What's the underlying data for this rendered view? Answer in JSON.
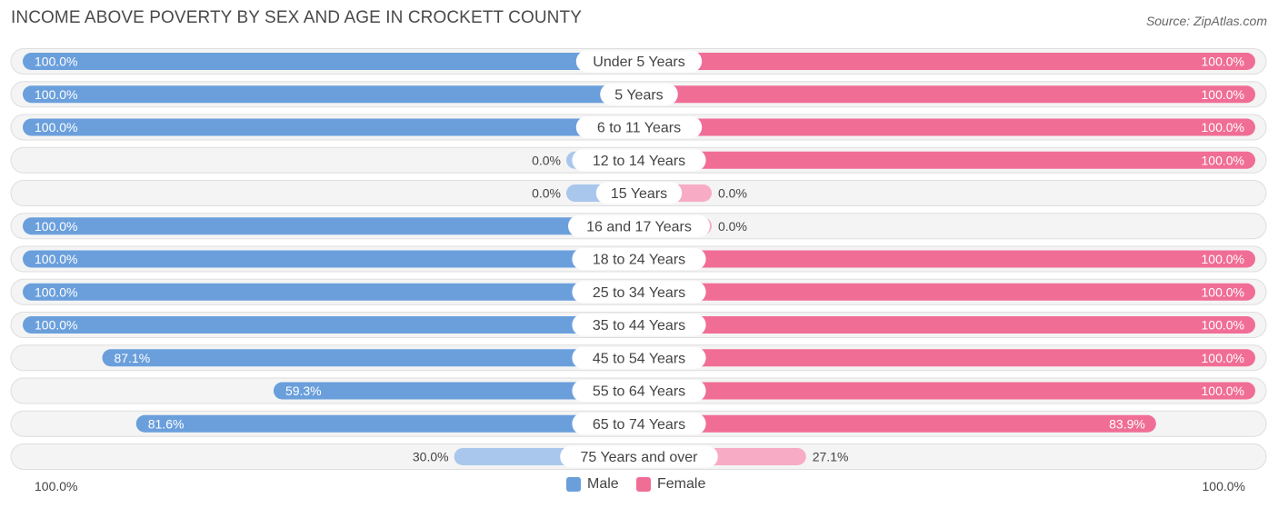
{
  "title": "INCOME ABOVE POVERTY BY SEX AND AGE IN CROCKETT COUNTY",
  "source": "Source: ZipAtlas.com",
  "colors": {
    "male_strong": "#6a9fdc",
    "male_light": "#a9c7ec",
    "female_strong": "#f06d96",
    "female_light": "#f7abc4",
    "track": "#efefef"
  },
  "legend": {
    "male": "Male",
    "female": "Female"
  },
  "axis": {
    "left_label": "100.0%",
    "right_label": "100.0%"
  },
  "chart_data": {
    "type": "bar",
    "orientation": "diverging-horizontal",
    "title": "INCOME ABOVE POVERTY BY SEX AND AGE IN CROCKETT COUNTY",
    "xlim": [
      -100,
      100
    ],
    "categories": [
      "Under 5 Years",
      "5 Years",
      "6 to 11 Years",
      "12 to 14 Years",
      "15 Years",
      "16 and 17 Years",
      "18 to 24 Years",
      "25 to 34 Years",
      "35 to 44 Years",
      "45 to 54 Years",
      "55 to 64 Years",
      "65 to 74 Years",
      "75 Years and over"
    ],
    "series": [
      {
        "name": "Male",
        "values": [
          100.0,
          100.0,
          100.0,
          0.0,
          0.0,
          100.0,
          100.0,
          100.0,
          100.0,
          87.1,
          59.3,
          81.6,
          30.0
        ],
        "labels": [
          "100.0%",
          "100.0%",
          "100.0%",
          "0.0%",
          "0.0%",
          "100.0%",
          "100.0%",
          "100.0%",
          "100.0%",
          "87.1%",
          "59.3%",
          "81.6%",
          "30.0%"
        ]
      },
      {
        "name": "Female",
        "values": [
          100.0,
          100.0,
          100.0,
          100.0,
          0.0,
          0.0,
          100.0,
          100.0,
          100.0,
          100.0,
          100.0,
          83.9,
          27.1
        ],
        "labels": [
          "100.0%",
          "100.0%",
          "100.0%",
          "100.0%",
          "0.0%",
          "0.0%",
          "100.0%",
          "100.0%",
          "100.0%",
          "100.0%",
          "100.0%",
          "83.9%",
          "27.1%"
        ]
      }
    ]
  }
}
